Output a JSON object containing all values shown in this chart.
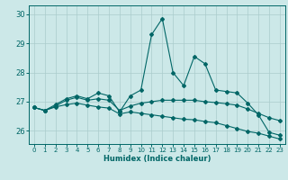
{
  "xlabel": "Humidex (Indice chaleur)",
  "bg_color": "#cce8e8",
  "grid_color": "#aacccc",
  "line_color": "#006666",
  "xlim": [
    -0.5,
    23.5
  ],
  "ylim": [
    25.55,
    30.3
  ],
  "yticks": [
    26,
    27,
    28,
    29,
    30
  ],
  "xticks": [
    0,
    1,
    2,
    3,
    4,
    5,
    6,
    7,
    8,
    9,
    10,
    11,
    12,
    13,
    14,
    15,
    16,
    17,
    18,
    19,
    20,
    21,
    22,
    23
  ],
  "line1_x": [
    0,
    1,
    2,
    3,
    4,
    5,
    6,
    7,
    8,
    9,
    10,
    11,
    12,
    13,
    14,
    15,
    16,
    17,
    18,
    19,
    20,
    21,
    22,
    23
  ],
  "line1_y": [
    26.8,
    26.7,
    26.9,
    27.1,
    27.2,
    27.1,
    27.3,
    27.2,
    26.65,
    27.2,
    27.4,
    29.3,
    29.85,
    28.0,
    27.55,
    28.55,
    28.3,
    27.4,
    27.35,
    27.3,
    26.95,
    26.55,
    25.95,
    25.85
  ],
  "line2_x": [
    0,
    1,
    2,
    3,
    4,
    5,
    6,
    7,
    8,
    9,
    10,
    11,
    12,
    13,
    14,
    15,
    16,
    17,
    18,
    19,
    20,
    21,
    22,
    23
  ],
  "line2_y": [
    26.8,
    26.7,
    26.85,
    27.05,
    27.15,
    27.05,
    27.1,
    27.05,
    26.7,
    26.85,
    26.95,
    27.0,
    27.05,
    27.05,
    27.05,
    27.05,
    27.0,
    26.97,
    26.93,
    26.88,
    26.75,
    26.6,
    26.45,
    26.35
  ],
  "line3_x": [
    0,
    1,
    2,
    3,
    4,
    5,
    6,
    7,
    8,
    9,
    10,
    11,
    12,
    13,
    14,
    15,
    16,
    17,
    18,
    19,
    20,
    21,
    22,
    23
  ],
  "line3_y": [
    26.8,
    26.7,
    26.82,
    26.9,
    26.95,
    26.88,
    26.82,
    26.78,
    26.58,
    26.65,
    26.6,
    26.55,
    26.5,
    26.45,
    26.4,
    26.38,
    26.32,
    26.28,
    26.18,
    26.08,
    25.98,
    25.92,
    25.82,
    25.72
  ]
}
